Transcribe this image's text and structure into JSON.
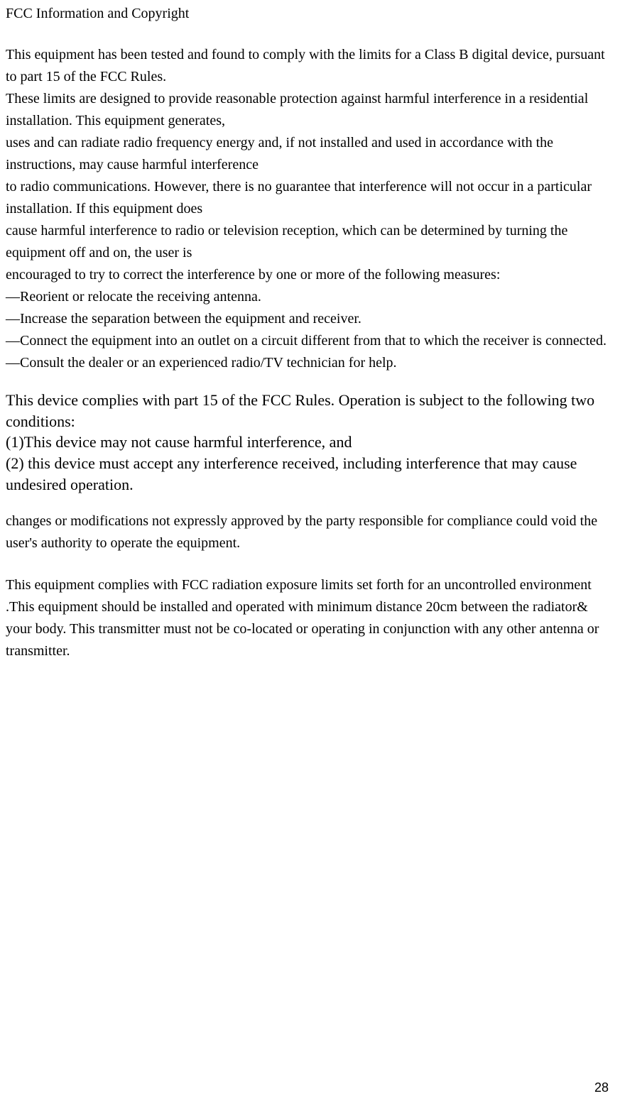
{
  "title": "FCC Information and Copyright",
  "body": {
    "p1": "This equipment has been tested and found to comply with the limits for a Class B digital device, pursuant to part 15 of the FCC Rules.",
    "p2": "These limits are designed to provide reasonable protection against harmful interference in a residential installation. This equipment generates,",
    "p3": "uses and can radiate radio frequency energy and, if not installed and used in accordance with the instructions, may cause harmful interference",
    "p4": "to radio communications. However, there is no guarantee that interference will not occur in a particular installation. If this equipment does",
    "p5": "cause harmful interference to radio or television reception, which can be determined by turning the equipment off and on, the user is",
    "p6": "encouraged to try to correct the interference by one or more of the following measures:",
    "m1": "—Reorient or relocate the receiving antenna.",
    "m2": "—Increase the separation between the equipment and receiver.",
    "m3": "—Connect the equipment into an outlet on a circuit different from that to which the receiver is connected.",
    "m4": "—Consult the dealer or an experienced radio/TV technician for help.",
    "comp1": "This device complies with part 15 of the FCC Rules. Operation is subject to the following two conditions:",
    "comp2": "(1)This device may not cause harmful interference, and",
    "comp3": "(2) this device must accept any interference received, including interference that may cause undesired operation.",
    "change": "changes or modifications not expressly approved by the party responsible for compliance could void the user's authority to operate the equipment.",
    "exposure": "This equipment complies with FCC radiation exposure limits set forth for an uncontrolled environment .This equipment should be installed and operated with minimum distance 20cm between the radiator& your body.    This transmitter must not be co-located or operating in conjunction with any other antenna or transmitter."
  },
  "page_number": "28",
  "style": {
    "body_font_size_small": 20,
    "body_font_size_large": 22,
    "text_color": "#000000",
    "background_color": "#ffffff",
    "page_number_font_size": 18
  }
}
